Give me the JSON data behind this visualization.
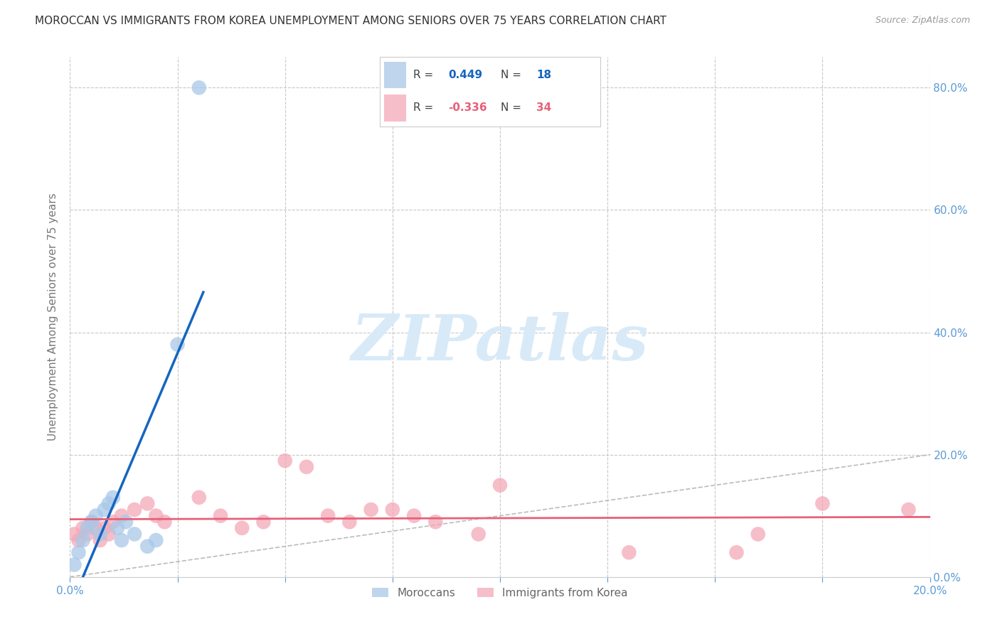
{
  "title": "MOROCCAN VS IMMIGRANTS FROM KOREA UNEMPLOYMENT AMONG SENIORS OVER 75 YEARS CORRELATION CHART",
  "source": "Source: ZipAtlas.com",
  "ylabel": "Unemployment Among Seniors over 75 years",
  "xlim": [
    0.0,
    0.2
  ],
  "ylim": [
    0.0,
    0.85
  ],
  "xticks": [
    0.0,
    0.025,
    0.05,
    0.075,
    0.1,
    0.125,
    0.15,
    0.175,
    0.2
  ],
  "xtick_labels": [
    "0.0%",
    "",
    "",
    "",
    "",
    "",
    "",
    "",
    "20.0%"
  ],
  "yticks": [
    0.0,
    0.2,
    0.4,
    0.6,
    0.8
  ],
  "ytick_labels_left": [
    "",
    "",
    "",
    "",
    ""
  ],
  "ytick_labels_right": [
    "0.0%",
    "20.0%",
    "40.0%",
    "60.0%",
    "80.0%"
  ],
  "moroccan_R": 0.449,
  "moroccan_N": 18,
  "korea_R": -0.336,
  "korea_N": 34,
  "moroccan_color": "#A8C8E8",
  "korea_color": "#F4A8B8",
  "moroccan_line_color": "#1565C0",
  "korea_line_color": "#E8607A",
  "grid_color": "#C8C8C8",
  "background_color": "#FFFFFF",
  "watermark_color": "#D8EAF8",
  "title_color": "#333333",
  "axis_label_color": "#777777",
  "tick_label_color": "#5B9BD5",
  "moroccan_x": [
    0.001,
    0.002,
    0.003,
    0.004,
    0.005,
    0.006,
    0.007,
    0.008,
    0.009,
    0.01,
    0.011,
    0.012,
    0.013,
    0.015,
    0.018,
    0.02,
    0.025,
    0.03
  ],
  "moroccan_y": [
    0.02,
    0.04,
    0.06,
    0.08,
    0.09,
    0.1,
    0.07,
    0.11,
    0.12,
    0.13,
    0.08,
    0.06,
    0.09,
    0.07,
    0.05,
    0.06,
    0.38,
    0.8
  ],
  "korea_x": [
    0.001,
    0.002,
    0.003,
    0.004,
    0.005,
    0.006,
    0.007,
    0.008,
    0.009,
    0.01,
    0.012,
    0.015,
    0.018,
    0.02,
    0.022,
    0.03,
    0.035,
    0.04,
    0.045,
    0.05,
    0.055,
    0.06,
    0.065,
    0.07,
    0.075,
    0.08,
    0.085,
    0.095,
    0.1,
    0.13,
    0.155,
    0.16,
    0.175,
    0.195
  ],
  "korea_y": [
    0.07,
    0.06,
    0.08,
    0.07,
    0.09,
    0.08,
    0.06,
    0.08,
    0.07,
    0.09,
    0.1,
    0.11,
    0.12,
    0.1,
    0.09,
    0.13,
    0.1,
    0.08,
    0.09,
    0.19,
    0.18,
    0.1,
    0.09,
    0.11,
    0.11,
    0.1,
    0.09,
    0.07,
    0.15,
    0.04,
    0.04,
    0.07,
    0.12,
    0.11
  ]
}
